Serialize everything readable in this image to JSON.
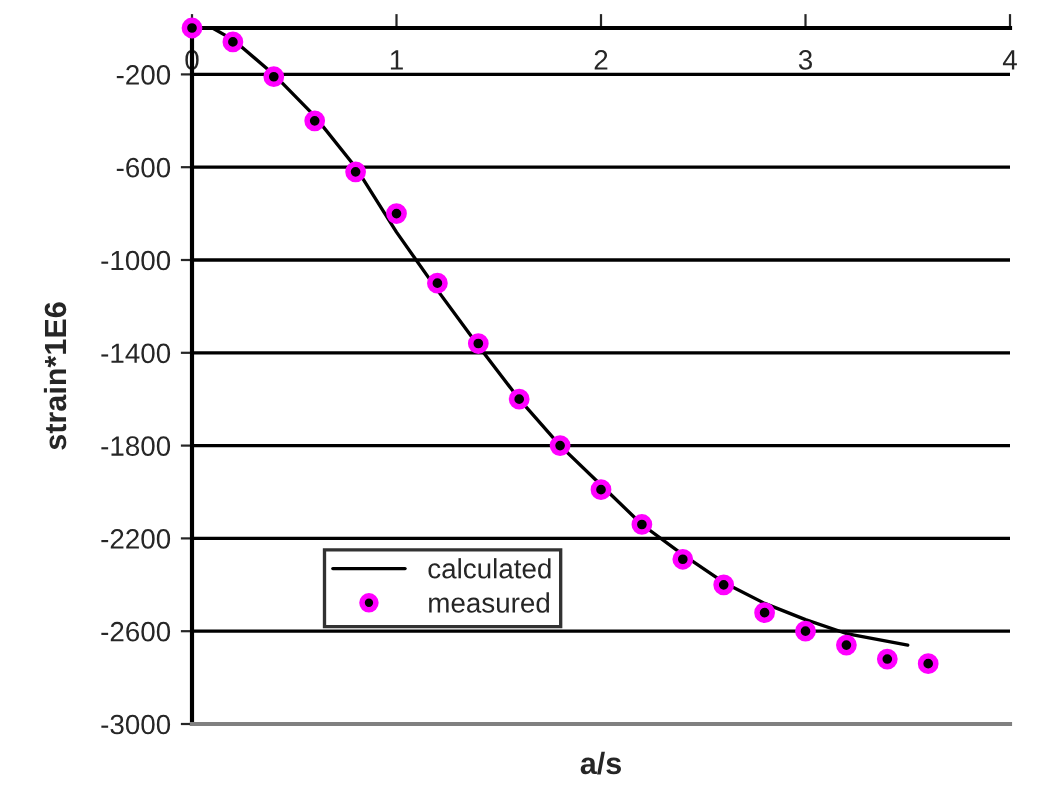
{
  "chart_data": {
    "type": "line",
    "xlabel": "a/s",
    "ylabel": "strain*1E6",
    "xlim": [
      0,
      4
    ],
    "xticks": [
      0,
      1,
      2,
      3,
      4
    ],
    "ylim": [
      -3000,
      0
    ],
    "yticks": [
      -3000,
      -2600,
      -2200,
      -1800,
      -1400,
      -1000,
      -600,
      -200
    ],
    "grid": "y",
    "legend": "bottom left",
    "series": [
      {
        "name": "calculated",
        "color": "#000000",
        "line_style": "solid",
        "marker": "none",
        "x": [
          0,
          0.1,
          0.2,
          0.4,
          0.6,
          0.8,
          1.0,
          1.2,
          1.4,
          1.6,
          1.8,
          2.0,
          2.2,
          2.4,
          2.6,
          2.8,
          3.0,
          3.2,
          3.5
        ],
        "values": [
          0,
          0,
          -50,
          -200,
          -380,
          -600,
          -880,
          -1130,
          -1370,
          -1600,
          -1800,
          -1970,
          -2140,
          -2270,
          -2390,
          -2480,
          -2550,
          -2610,
          -2660
        ]
      },
      {
        "name": "measured",
        "type": "scatter",
        "color": "#ff00ff",
        "marker": "circle",
        "x": [
          0,
          0.2,
          0.4,
          0.6,
          0.8,
          1.0,
          1.2,
          1.4,
          1.6,
          1.8,
          2.0,
          2.2,
          2.4,
          2.6,
          2.8,
          3.0,
          3.2,
          3.4,
          3.6
        ],
        "values": [
          0,
          -60,
          -210,
          -400,
          -620,
          -800,
          -1100,
          -1360,
          -1600,
          -1800,
          -1990,
          -2140,
          -2290,
          -2400,
          -2520,
          -2600,
          -2660,
          -2720,
          -2740
        ]
      }
    ]
  }
}
